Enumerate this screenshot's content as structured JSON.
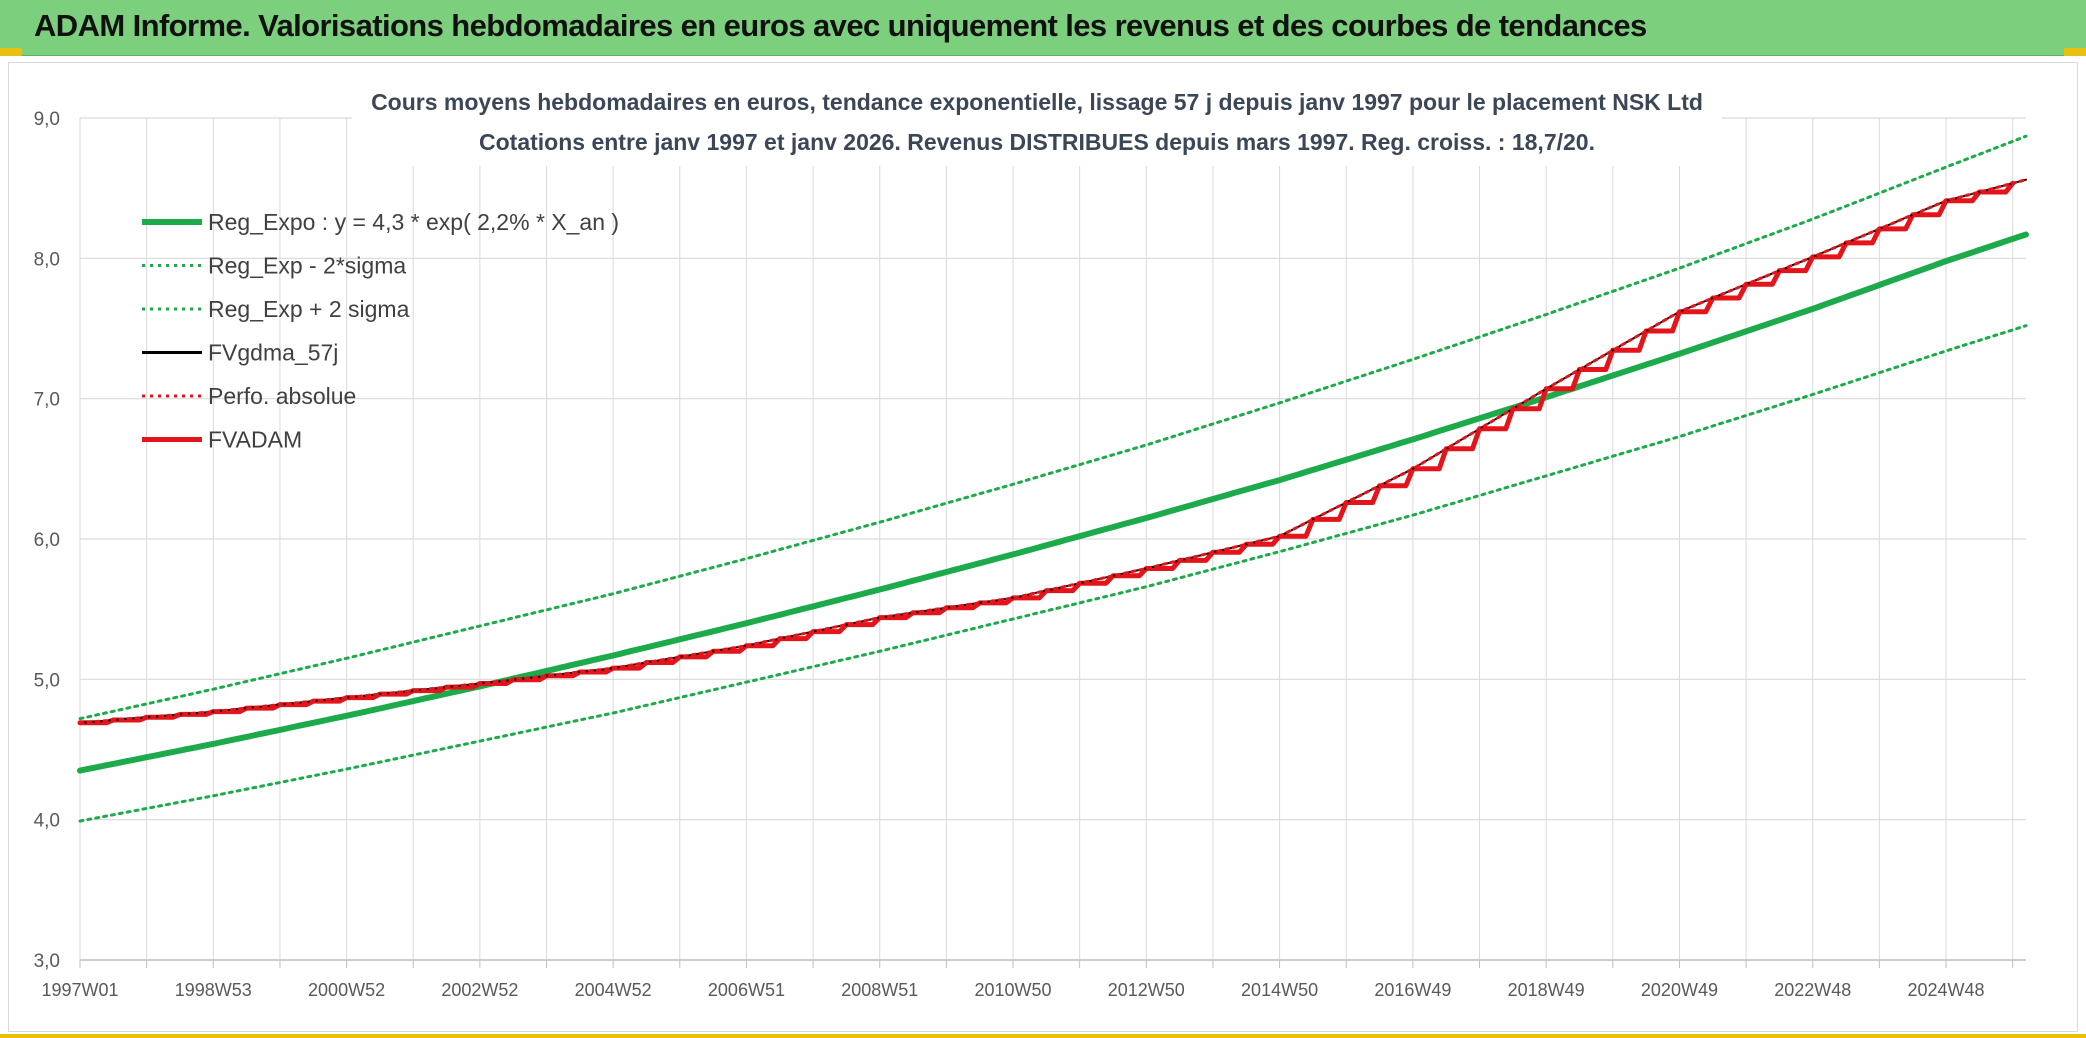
{
  "header": {
    "title": "ADAM Informe. Valorisations hebdomadaires en euros avec uniquement les revenus et des courbes de tendances"
  },
  "colors": {
    "banner": "#7ccf7c",
    "green": "#1daa4a",
    "red": "#e3151a",
    "black": "#000000",
    "grid": "#d9d9d9"
  },
  "chart_data": {
    "type": "line",
    "title_line1": "Cours moyens hebdomadaires en euros, tendance exponentielle, lissage 57 j depuis janv 1997 pour le placement NSK Ltd",
    "title_line2": "Cotations entre janv 1997 et janv 2026. Revenus DISTRIBUES depuis mars 1997. Reg. croiss. : 18,7/20.",
    "xlabel": "",
    "ylabel": "",
    "ylim": [
      3.0,
      9.0
    ],
    "yticks": [
      "3,0",
      "4,0",
      "5,0",
      "6,0",
      "7,0",
      "8,0",
      "9,0"
    ],
    "xrange_years": [
      1997.0,
      2026.2
    ],
    "xticks": [
      {
        "label": "1997W01",
        "year": 1997.0
      },
      {
        "label": "1998W53",
        "year": 1999.0
      },
      {
        "label": "2000W52",
        "year": 2001.0
      },
      {
        "label": "2002W52",
        "year": 2003.0
      },
      {
        "label": "2004W52",
        "year": 2005.0
      },
      {
        "label": "2006W51",
        "year": 2007.0
      },
      {
        "label": "2008W51",
        "year": 2009.0
      },
      {
        "label": "2010W50",
        "year": 2011.0
      },
      {
        "label": "2012W50",
        "year": 2013.0
      },
      {
        "label": "2014W50",
        "year": 2015.0
      },
      {
        "label": "2016W49",
        "year": 2017.0
      },
      {
        "label": "2018W49",
        "year": 2019.0
      },
      {
        "label": "2020W49",
        "year": 2021.0
      },
      {
        "label": "2022W48",
        "year": 2023.0
      },
      {
        "label": "2024W48",
        "year": 2025.0
      }
    ],
    "grid": true,
    "legend_position": "top-left",
    "series": [
      {
        "name": "Reg_Expo : y = 4,3 * exp( 2,2% *  X_an )",
        "style": "solid-thick",
        "color": "#1daa4a",
        "x": [
          1997,
          1999,
          2001,
          2003,
          2005,
          2007,
          2009,
          2011,
          2013,
          2015,
          2017,
          2019,
          2021,
          2023,
          2025,
          2026.2
        ],
        "y": [
          4.35,
          4.54,
          4.74,
          4.95,
          5.17,
          5.4,
          5.64,
          5.89,
          6.15,
          6.42,
          6.71,
          7.01,
          7.32,
          7.64,
          7.98,
          8.17
        ]
      },
      {
        "name": "Reg_Exp - 2*sigma",
        "style": "dotted",
        "color": "#1daa4a",
        "x": [
          1997,
          1999,
          2001,
          2003,
          2005,
          2007,
          2009,
          2011,
          2013,
          2015,
          2017,
          2019,
          2021,
          2023,
          2025,
          2026.2
        ],
        "y": [
          3.99,
          4.17,
          4.36,
          4.56,
          4.76,
          4.98,
          5.2,
          5.43,
          5.66,
          5.91,
          6.17,
          6.45,
          6.73,
          7.03,
          7.34,
          7.52
        ]
      },
      {
        "name": "Reg_Exp + 2 sigma",
        "style": "dotted",
        "color": "#1daa4a",
        "x": [
          1997,
          1999,
          2001,
          2003,
          2005,
          2007,
          2009,
          2011,
          2013,
          2015,
          2017,
          2019,
          2021,
          2023,
          2025,
          2026.2
        ],
        "y": [
          4.72,
          4.93,
          5.15,
          5.38,
          5.61,
          5.86,
          6.12,
          6.39,
          6.67,
          6.97,
          7.28,
          7.6,
          7.93,
          8.28,
          8.65,
          8.87
        ]
      },
      {
        "name": "FVgdma_57j",
        "style": "solid-thin",
        "color": "#000000",
        "x": [
          1997,
          1999,
          2001,
          2003,
          2005,
          2007,
          2009,
          2011,
          2013,
          2015,
          2017,
          2019,
          2021,
          2023,
          2025,
          2026.2
        ],
        "y": [
          4.69,
          4.77,
          4.87,
          4.97,
          5.08,
          5.24,
          5.44,
          5.58,
          5.79,
          6.02,
          6.5,
          7.07,
          7.62,
          8.01,
          8.41,
          8.56
        ]
      },
      {
        "name": "Perfo. absolue",
        "style": "dotted",
        "color": "#e3151a",
        "x": [
          1997,
          1999,
          2001,
          2003,
          2005,
          2007,
          2009,
          2011,
          2013,
          2015,
          2017,
          2019,
          2021,
          2023,
          2025,
          2026.2
        ],
        "y": [
          4.69,
          4.77,
          4.87,
          4.97,
          5.08,
          5.24,
          5.44,
          5.58,
          5.79,
          6.02,
          6.5,
          7.07,
          7.62,
          8.01,
          8.41,
          8.56
        ]
      },
      {
        "name": "FVADAM",
        "style": "step-thick",
        "color": "#e3151a",
        "x": [
          1997,
          1999,
          2001,
          2003,
          2005,
          2007,
          2009,
          2011,
          2013,
          2015,
          2017,
          2019,
          2021,
          2023,
          2025,
          2026.2
        ],
        "y": [
          4.69,
          4.77,
          4.87,
          4.97,
          5.08,
          5.24,
          5.44,
          5.58,
          5.79,
          6.02,
          6.5,
          7.07,
          7.62,
          8.01,
          8.41,
          8.56
        ]
      }
    ]
  }
}
